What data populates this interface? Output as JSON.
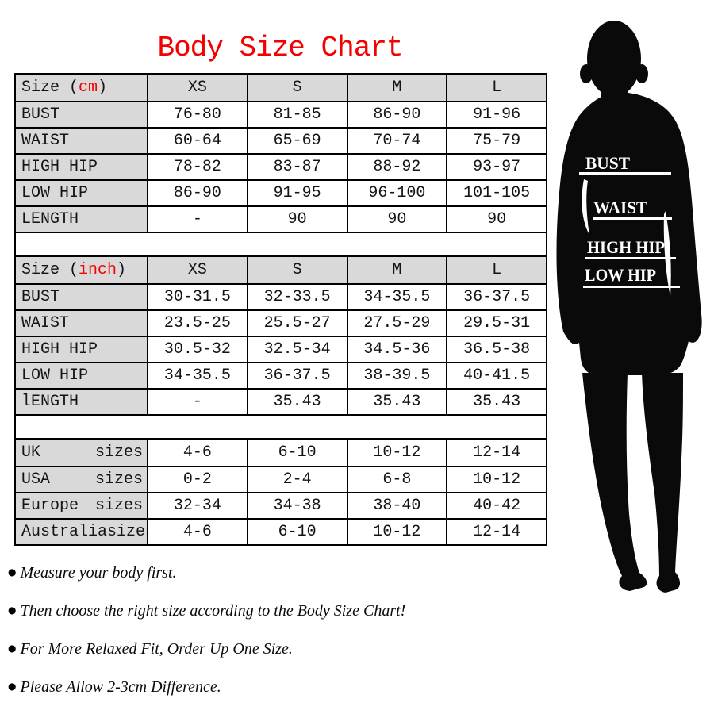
{
  "title": "Body Size Chart",
  "colors": {
    "accent_red": "#f40000",
    "cell_gray": "#d9d9d9",
    "border": "#000000"
  },
  "tables": [
    {
      "unit_label": {
        "prefix": "Size (",
        "unit": "cm",
        "suffix": ")"
      },
      "columns": [
        "XS",
        "S",
        "M",
        "L"
      ],
      "rows": [
        {
          "label": "BUST",
          "values": [
            "76-80",
            "81-85",
            "86-90",
            "91-96"
          ]
        },
        {
          "label": "WAIST",
          "values": [
            "60-64",
            "65-69",
            "70-74",
            "75-79"
          ]
        },
        {
          "label": "HIGH HIP",
          "values": [
            "78-82",
            "83-87",
            "88-92",
            "93-97"
          ]
        },
        {
          "label": "LOW HIP",
          "values": [
            "86-90",
            "91-95",
            "96-100",
            "101-105"
          ]
        },
        {
          "label": "LENGTH",
          "values": [
            "-",
            "90",
            "90",
            "90"
          ]
        }
      ]
    },
    {
      "unit_label": {
        "prefix": "Size (",
        "unit": "inch",
        "suffix": ")"
      },
      "columns": [
        "XS",
        "S",
        "M",
        "L"
      ],
      "rows": [
        {
          "label": "BUST",
          "values": [
            "30-31.5",
            "32-33.5",
            "34-35.5",
            "36-37.5"
          ]
        },
        {
          "label": "WAIST",
          "values": [
            "23.5-25",
            "25.5-27",
            "27.5-29",
            "29.5-31"
          ]
        },
        {
          "label": "HIGH HIP",
          "values": [
            "30.5-32",
            "32.5-34",
            "34.5-36",
            "36.5-38"
          ]
        },
        {
          "label": "LOW HIP",
          "values": [
            "34-35.5",
            "36-37.5",
            "38-39.5",
            "40-41.5"
          ]
        },
        {
          "label": "lENGTH",
          "values": [
            "-",
            "35.43",
            "35.43",
            "35.43"
          ]
        }
      ]
    },
    {
      "rows": [
        {
          "label": "UK",
          "label_suffix": "sizes",
          "values": [
            "4-6",
            "6-10",
            "10-12",
            "12-14"
          ]
        },
        {
          "label": "USA",
          "label_suffix": "sizes",
          "values": [
            "0-2",
            "2-4",
            "6-8",
            "10-12"
          ]
        },
        {
          "label": "Europe",
          "label_suffix": "sizes",
          "values": [
            "32-34",
            "34-38",
            "38-40",
            "40-42"
          ]
        },
        {
          "label": "Australia",
          "label_suffix": "sizes",
          "values": [
            "4-6",
            "6-10",
            "10-12",
            "12-14"
          ]
        }
      ]
    }
  ],
  "notes": [
    "Measure your body first.",
    "Then choose the right size according to the Body Size Chart!",
    "For More Relaxed Fit, Order Up One Size.",
    "Please Allow 2-3cm Difference."
  ],
  "figure": {
    "labels": [
      "BUST",
      "WAIST",
      "HIGH HIP",
      "LOW HIP"
    ]
  }
}
